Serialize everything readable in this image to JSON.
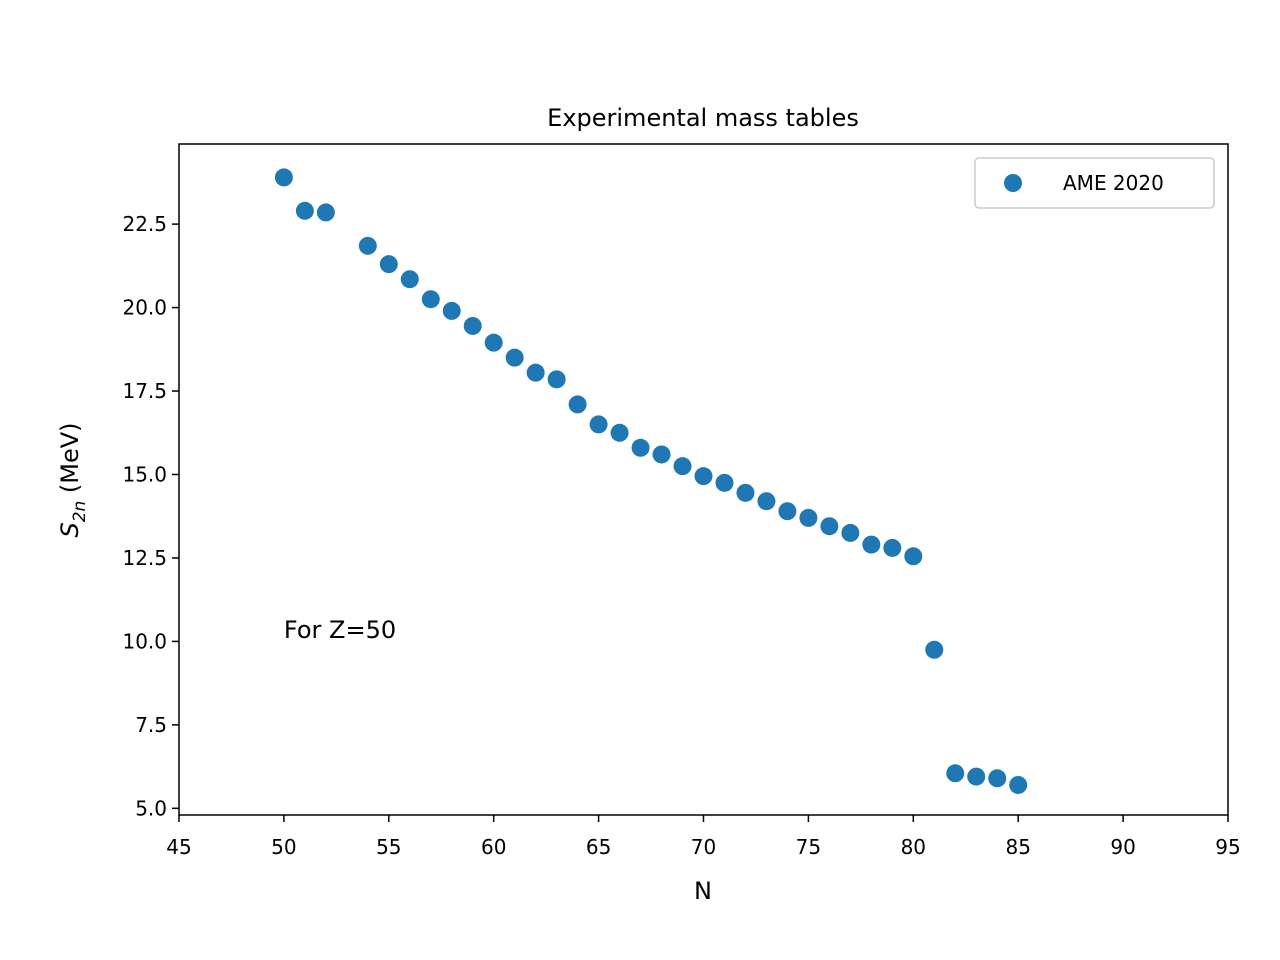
{
  "chart_data": {
    "type": "scatter",
    "title": "Experimental mass tables",
    "xlabel": "N",
    "ylabel_main": "S",
    "ylabel_sub": "2n",
    "ylabel_unit": " (MeV)",
    "xlim": [
      45,
      95
    ],
    "ylim": [
      4.8,
      24.9
    ],
    "x_ticks": [
      45,
      50,
      55,
      60,
      65,
      70,
      75,
      80,
      85,
      90,
      95
    ],
    "x_tick_labels": [
      "45",
      "50",
      "55",
      "60",
      "65",
      "70",
      "75",
      "80",
      "85",
      "90",
      "95"
    ],
    "y_ticks": [
      5.0,
      7.5,
      10.0,
      12.5,
      15.0,
      17.5,
      20.0,
      22.5
    ],
    "y_tick_labels": [
      "5.0",
      "7.5",
      "10.0",
      "12.5",
      "15.0",
      "17.5",
      "20.0",
      "22.5"
    ],
    "grid": false,
    "legend_position": "top-right",
    "annotation": "For Z=50",
    "annotation_at": [
      50,
      10.1
    ],
    "series": [
      {
        "name": "AME 2020",
        "color": "#1f77b4",
        "x": [
          50,
          51,
          52,
          54,
          55,
          56,
          57,
          58,
          59,
          60,
          61,
          62,
          63,
          64,
          65,
          66,
          67,
          68,
          69,
          70,
          71,
          72,
          73,
          74,
          75,
          76,
          77,
          78,
          79,
          80,
          81,
          82,
          83,
          84,
          85
        ],
        "y": [
          23.9,
          22.9,
          22.85,
          21.85,
          21.3,
          20.85,
          20.25,
          19.9,
          19.45,
          18.95,
          18.5,
          18.05,
          17.85,
          17.1,
          16.5,
          16.25,
          15.8,
          15.6,
          15.25,
          14.95,
          14.75,
          14.45,
          14.2,
          13.9,
          13.7,
          13.45,
          13.25,
          12.9,
          12.8,
          12.55,
          9.75,
          6.05,
          5.95,
          5.9,
          5.7
        ]
      }
    ]
  }
}
